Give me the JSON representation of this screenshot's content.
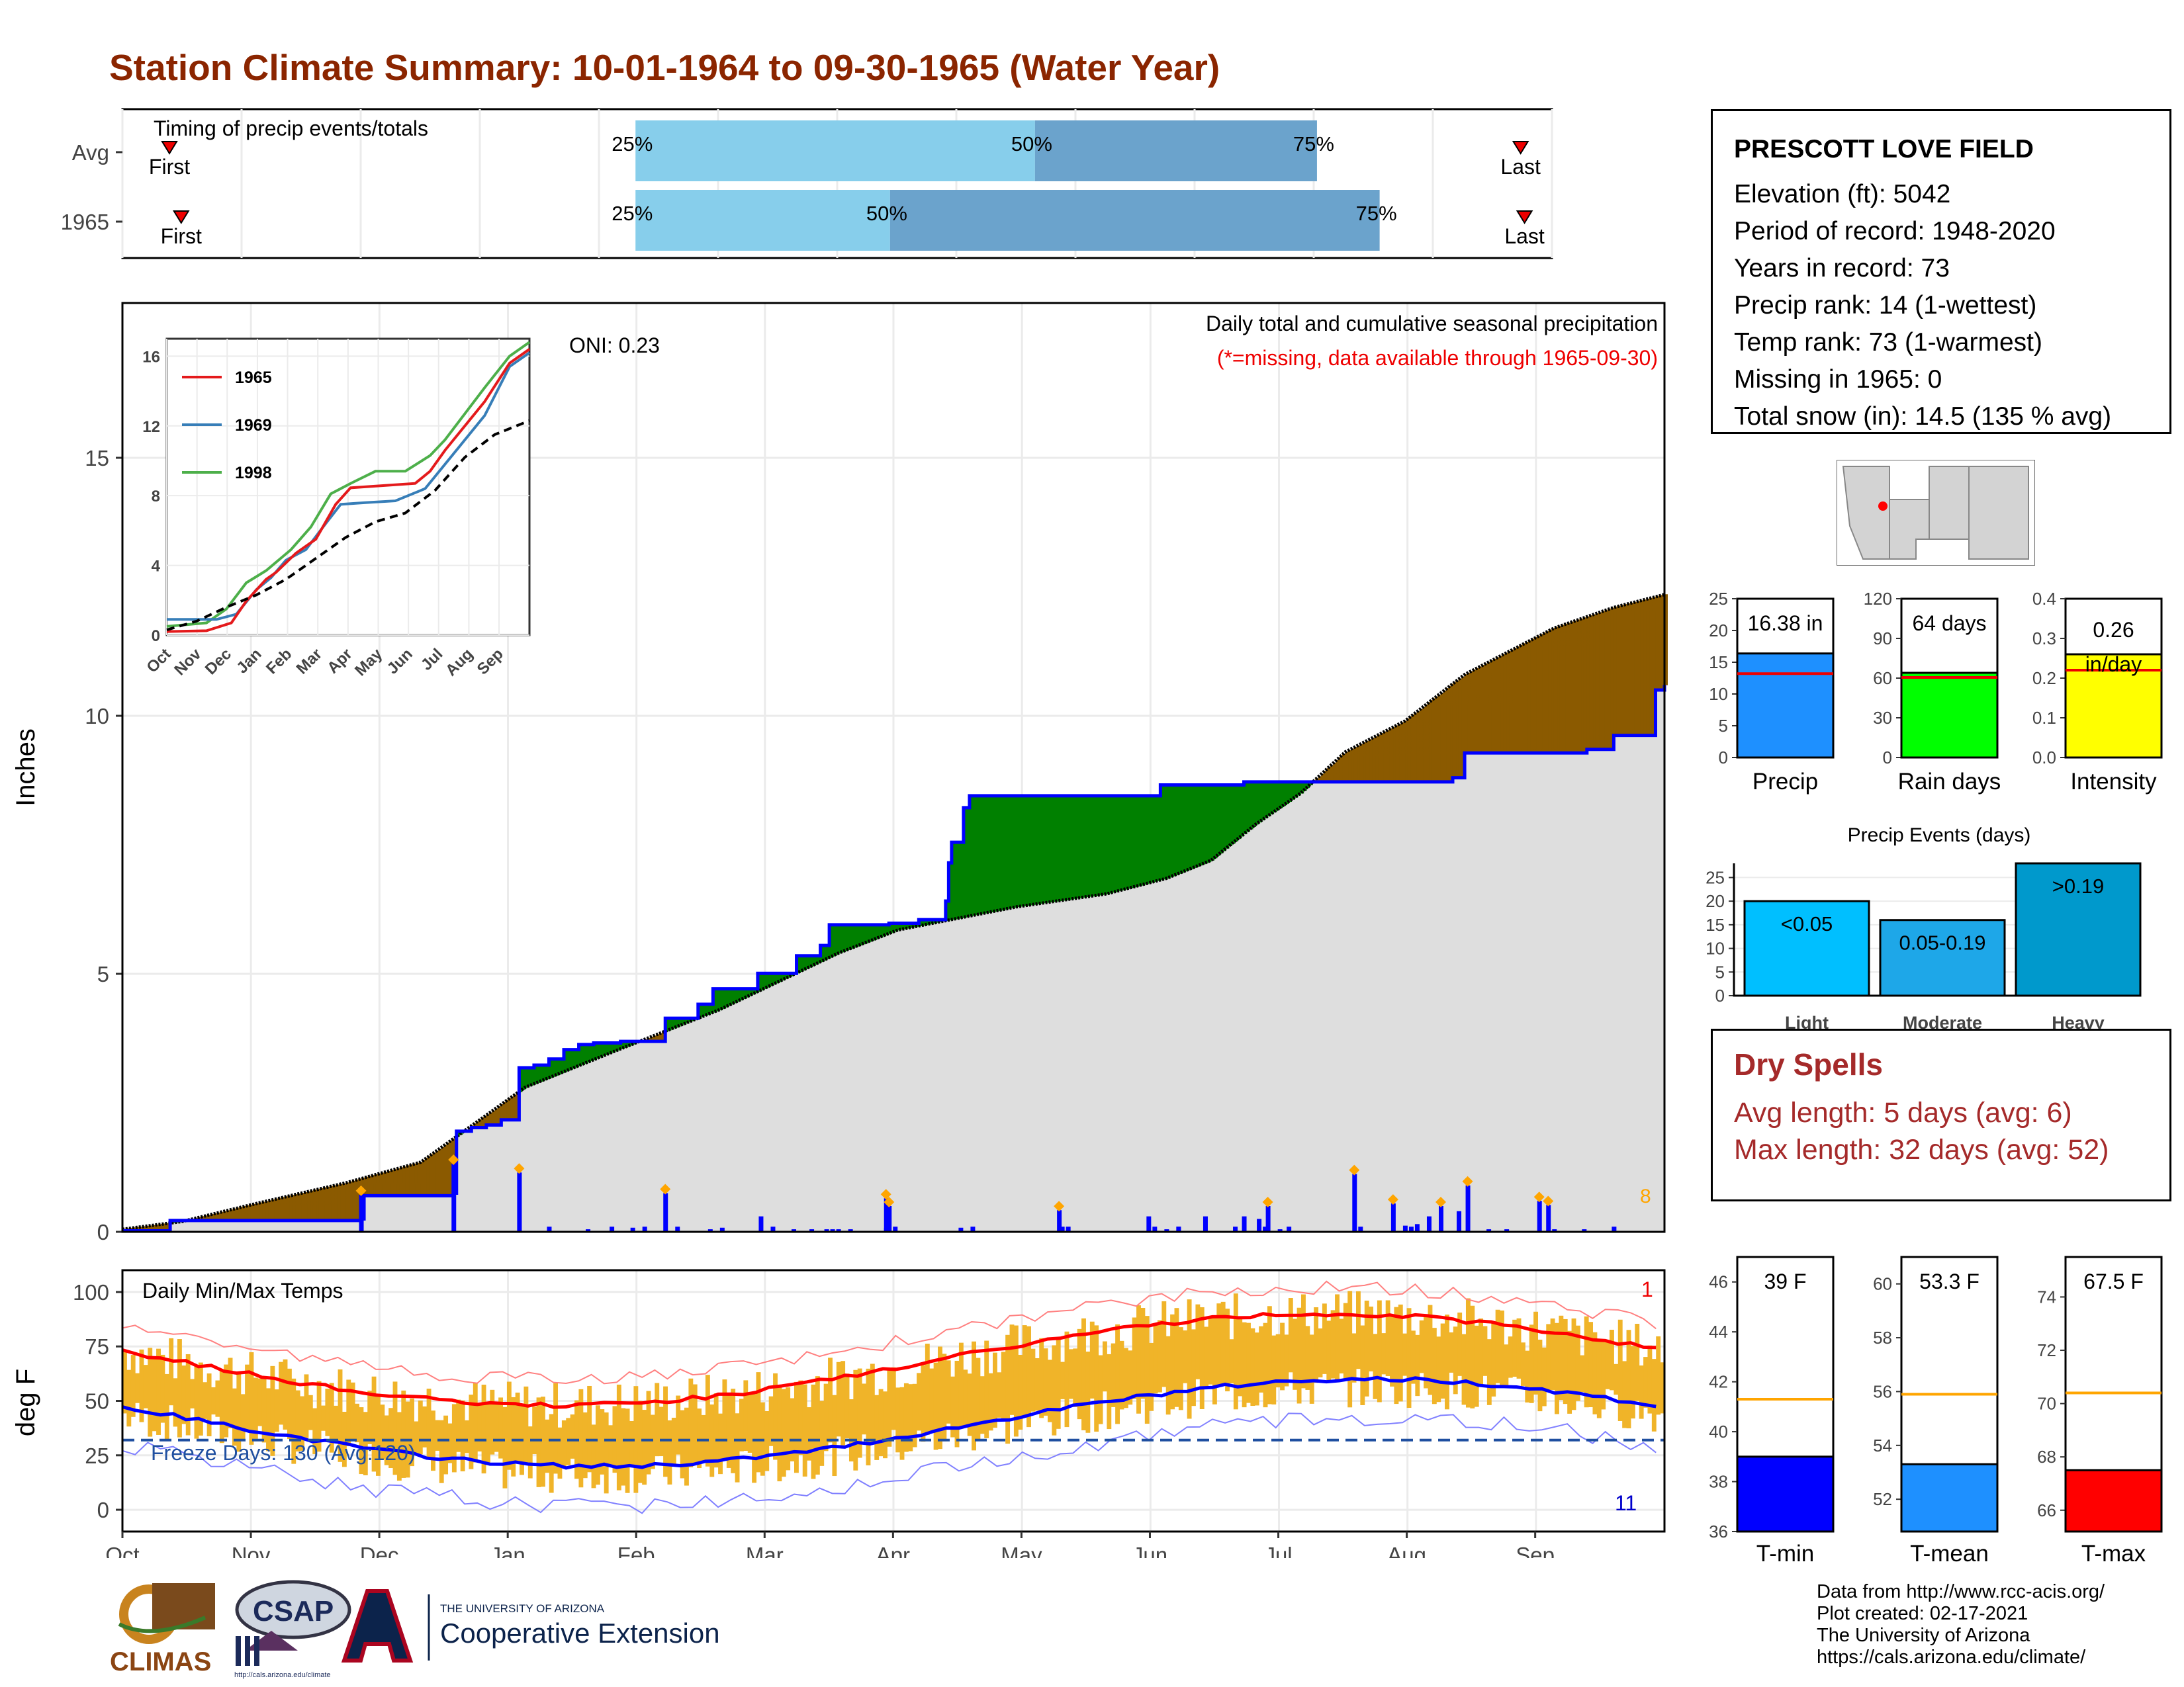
{
  "title": "Station Climate Summary: 10-01-1964 to 09-30-1965 (Water Year)",
  "station": {
    "name": "PRESCOTT LOVE FIELD",
    "lines": [
      "Elevation (ft): 5042",
      "Period of record: 1948-2020",
      "Years in record: 73",
      "Precip rank: 14 (1-wettest)",
      "Temp rank: 73 (1-warmest)",
      "Missing in 1965: 0",
      "Total snow (in): 14.5 (135 % avg)"
    ]
  },
  "timing": {
    "title": "Timing of precip events/totals",
    "rows": [
      {
        "label": "Avg",
        "first_day": 12,
        "p25": 131,
        "p50": 233,
        "p75": 305,
        "last_day": 357,
        "first_label": "First",
        "last_label": "Last"
      },
      {
        "label": "1965",
        "first_day": 15,
        "p25": 131,
        "p50": 196,
        "p75": 321,
        "last_day": 358,
        "first_label": "First",
        "last_label": "Last"
      }
    ],
    "pct_labels": [
      "25%",
      "50%",
      "75%"
    ]
  },
  "precip": {
    "ylabel": "Inches",
    "yticks": [
      0,
      5,
      10,
      15
    ],
    "ylim": [
      0,
      18
    ],
    "note1": "Daily total and cumulative seasonal precipitation",
    "note2": "(*=missing, data available through 1965-09-30)",
    "oni": "ONI: 0.23",
    "count_label": "8",
    "obs_steps": [
      [
        0,
        0.02
      ],
      [
        16,
        0.22
      ],
      [
        80,
        0.25
      ],
      [
        81,
        0.7
      ],
      [
        111,
        0.75
      ],
      [
        112,
        1.95
      ],
      [
        117,
        2.02
      ],
      [
        122,
        2.07
      ],
      [
        127,
        2.17
      ],
      [
        133,
        3.18
      ],
      [
        138,
        3.23
      ],
      [
        143,
        3.35
      ],
      [
        148,
        3.53
      ],
      [
        153,
        3.63
      ],
      [
        158,
        3.66
      ],
      [
        167,
        3.69
      ],
      [
        182,
        4.14
      ],
      [
        193,
        4.41
      ],
      [
        198,
        4.71
      ],
      [
        213,
        5.01
      ],
      [
        226,
        5.35
      ],
      [
        234,
        5.55
      ],
      [
        237,
        5.95
      ],
      [
        257,
        5.98
      ],
      [
        267,
        6.05
      ],
      [
        276,
        6.41
      ],
      [
        277,
        7.15
      ],
      [
        278,
        7.55
      ],
      [
        282,
        8.22
      ],
      [
        284,
        8.45
      ],
      [
        313,
        8.45
      ],
      [
        314,
        8.45
      ],
      [
        347,
        8.45
      ],
      [
        348,
        8.66
      ],
      [
        376,
        8.72
      ],
      [
        400,
        8.72
      ],
      [
        410,
        8.72
      ],
      [
        446,
        8.8
      ],
      [
        450,
        9.28
      ],
      [
        491,
        9.35
      ],
      [
        500,
        9.62
      ],
      [
        514,
        10.5
      ],
      [
        517,
        10.6
      ]
    ],
    "daily_values_days": [
      80,
      111,
      133,
      143,
      156,
      164,
      171,
      175,
      182,
      186,
      197,
      201,
      214,
      218,
      225,
      231,
      236,
      238,
      240,
      244,
      256,
      256,
      257,
      259,
      281,
      285,
      314,
      315,
      317,
      344,
      346,
      350,
      354,
      354,
      363,
      373,
      376,
      381,
      383,
      384,
      388,
      391,
      413,
      415,
      426,
      430,
      432,
      434,
      438,
      442,
      448,
      451,
      458,
      464,
      475,
      478,
      480,
      490,
      500
    ],
    "daily_values_in": [
      0.72,
      1.32,
      1.15,
      0.1,
      0.05,
      0.1,
      0.08,
      0.1,
      0.75,
      0.1,
      0.05,
      0.08,
      0.3,
      0.1,
      0.05,
      0.05,
      0.05,
      0.05,
      0.05,
      0.05,
      0.08,
      0.65,
      0.5,
      0.1,
      0.08,
      0.1,
      0.42,
      0.1,
      0.1,
      0.3,
      0.1,
      0.05,
      0.1,
      0.1,
      0.3,
      0.1,
      0.3,
      0.25,
      0.1,
      0.5,
      0.05,
      0.1,
      1.12,
      0.1,
      0.55,
      0.12,
      0.1,
      0.15,
      0.3,
      0.5,
      0.4,
      0.9,
      0.05,
      0.05,
      0.6,
      0.52,
      0.05,
      0.05,
      0.1
    ]
  },
  "inset": {
    "yticks": [
      0,
      4,
      8,
      12,
      16
    ],
    "xticks": [
      "Oct",
      "Nov",
      "Dec",
      "Jan",
      "Feb",
      "Mar",
      "Apr",
      "May",
      "Jun",
      "Jul",
      "Aug",
      "Sep"
    ],
    "legend": [
      {
        "name": "1965",
        "color": "#e41a1c"
      },
      {
        "name": "1969",
        "color": "#377eb8"
      },
      {
        "name": "1998",
        "color": "#4daf4a"
      }
    ],
    "series": {
      "1965": [
        [
          0,
          0.2
        ],
        [
          40,
          0.25
        ],
        [
          65,
          0.7
        ],
        [
          80,
          1.95
        ],
        [
          100,
          3.2
        ],
        [
          110,
          3.6
        ],
        [
          130,
          4.7
        ],
        [
          150,
          5.5
        ],
        [
          170,
          7.5
        ],
        [
          185,
          8.45
        ],
        [
          250,
          8.7
        ],
        [
          265,
          9.4
        ],
        [
          280,
          10.6
        ],
        [
          300,
          12.0
        ],
        [
          320,
          13.4
        ],
        [
          345,
          15.6
        ],
        [
          365,
          16.4
        ]
      ],
      "1969": [
        [
          0,
          0.9
        ],
        [
          50,
          0.9
        ],
        [
          70,
          1.2
        ],
        [
          90,
          2.6
        ],
        [
          105,
          3.3
        ],
        [
          120,
          4.3
        ],
        [
          140,
          4.9
        ],
        [
          160,
          6.4
        ],
        [
          175,
          7.5
        ],
        [
          200,
          7.6
        ],
        [
          230,
          7.7
        ],
        [
          260,
          8.4
        ],
        [
          280,
          9.8
        ],
        [
          300,
          11.2
        ],
        [
          320,
          12.6
        ],
        [
          345,
          15.4
        ],
        [
          365,
          16.2
        ]
      ],
      "1998": [
        [
          0,
          0.5
        ],
        [
          40,
          0.7
        ],
        [
          60,
          1.5
        ],
        [
          80,
          3.0
        ],
        [
          100,
          3.7
        ],
        [
          125,
          4.9
        ],
        [
          145,
          6.2
        ],
        [
          165,
          8.1
        ],
        [
          185,
          8.7
        ],
        [
          210,
          9.4
        ],
        [
          240,
          9.4
        ],
        [
          265,
          10.3
        ],
        [
          280,
          11.2
        ],
        [
          300,
          12.7
        ],
        [
          320,
          14.2
        ],
        [
          345,
          16.0
        ],
        [
          365,
          16.8
        ]
      ],
      "avg": [
        [
          0,
          0.3
        ],
        [
          30,
          0.8
        ],
        [
          60,
          1.6
        ],
        [
          90,
          2.3
        ],
        [
          120,
          3.2
        ],
        [
          150,
          4.4
        ],
        [
          180,
          5.6
        ],
        [
          210,
          6.5
        ],
        [
          240,
          7.0
        ],
        [
          270,
          8.3
        ],
        [
          300,
          10.2
        ],
        [
          330,
          11.5
        ],
        [
          365,
          12.3
        ]
      ]
    }
  },
  "stats_bars": [
    {
      "label": "Precip",
      "value_label": "16.38 in",
      "value": 16.38,
      "avg": 13.2,
      "ymax": 25,
      "yticks": [
        0,
        5,
        10,
        15,
        20,
        25
      ],
      "color": "#1e90ff"
    },
    {
      "label": "Rain days",
      "value_label": "64 days",
      "value": 64,
      "avg": 60.5,
      "ymax": 120,
      "yticks": [
        0,
        30,
        60,
        90,
        120
      ],
      "color": "#00ff00"
    },
    {
      "label": "Intensity",
      "value_label": "0.26 in/day",
      "value": 0.26,
      "avg": 0.22,
      "ymax": 0.4,
      "yticks": [
        0.0,
        0.1,
        0.2,
        0.3,
        0.4
      ],
      "color": "#ffff00"
    }
  ],
  "events": {
    "title": "Precip Events (days)",
    "yticks": [
      0,
      5,
      10,
      15,
      20,
      25
    ],
    "bars": [
      {
        "label": "Light",
        "value": 20,
        "bar_label": "<0.05",
        "color": "#00bfff"
      },
      {
        "label": "Moderate",
        "value": 16,
        "bar_label": "0.05-0.19",
        "color": "#1ea7e8"
      },
      {
        "label": "Heavy",
        "value": 28,
        "bar_label": ">0.19",
        "color": "#0099cc"
      }
    ]
  },
  "dry_spells": {
    "title": "Dry Spells",
    "lines": [
      "Avg length: 5 days (avg: 6)",
      "Max length: 32 days (avg: 52)"
    ]
  },
  "temps": {
    "title": "Daily Min/Max Temps",
    "ylabel": "deg F",
    "yticks": [
      0,
      25,
      50,
      75,
      100
    ],
    "ylim": [
      -10,
      110
    ],
    "freeze": "Freeze Days: 130 (Avg:120)",
    "freeze_line": 32,
    "count_max": "1",
    "count_min": "11",
    "xticks": [
      "Oct",
      "Nov",
      "Dec",
      "Jan",
      "Feb",
      "Mar",
      "Apr",
      "May",
      "Jun",
      "Jul",
      "Aug",
      "Sep"
    ]
  },
  "temp_bars": [
    {
      "label": "T-min",
      "value_label": "39 F",
      "value": 39,
      "avg": 41.3,
      "ylim": [
        36,
        47
      ],
      "yticks": [
        36,
        38,
        40,
        42,
        44,
        46
      ],
      "color": "#0000ff"
    },
    {
      "label": "T-mean",
      "value_label": "53.3 F",
      "value": 53.3,
      "avg": 55.9,
      "ylim": [
        50.8,
        61
      ],
      "yticks": [
        52,
        54,
        56,
        58,
        60
      ],
      "color": "#1e90ff"
    },
    {
      "label": "T-max",
      "value_label": "67.5 F",
      "value": 67.5,
      "avg": 70.4,
      "ylim": [
        65.2,
        75.5
      ],
      "yticks": [
        66,
        68,
        70,
        72,
        74
      ],
      "color": "#ff0000"
    }
  ],
  "sources": [
    "Data from http://www.rcc-acis.org/",
    "Plot created: 02-17-2021",
    "The University of Arizona",
    "https://cals.arizona.edu/climate/"
  ],
  "logos": {
    "climas": "CLIMAS",
    "csap": "CSAP",
    "csap_url": "http://cals.arizona.edu/climate",
    "ua_small": "THE UNIVERSITY OF ARIZONA",
    "ua_big": "Cooperative Extension"
  }
}
